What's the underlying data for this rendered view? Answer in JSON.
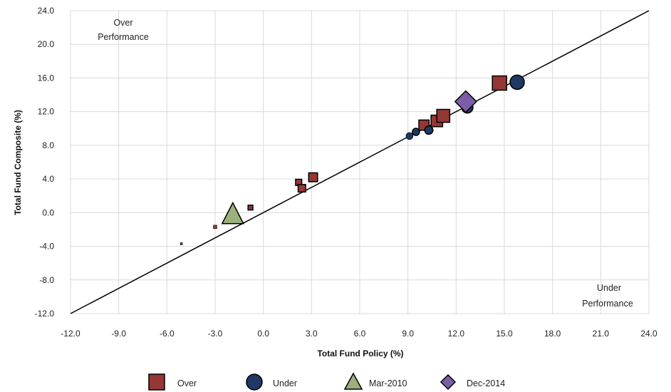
{
  "chart_data": {
    "type": "scatter",
    "xlabel": "Total Fund Policy (%)",
    "ylabel": "Total Fund Composite (%)",
    "xlim": [
      -12,
      24
    ],
    "ylim": [
      -12,
      24
    ],
    "x_ticks": [
      "-12.0",
      "-9.0",
      "-6.0",
      "-3.0",
      "0.0",
      "3.0",
      "6.0",
      "9.0",
      "12.0",
      "15.0",
      "18.0",
      "21.0",
      "24.0"
    ],
    "y_ticks": [
      "-12.0",
      "-8.0",
      "-4.0",
      "0.0",
      "4.0",
      "8.0",
      "12.0",
      "16.0",
      "20.0",
      "24.0"
    ],
    "grid": true,
    "reference_line": {
      "from": [
        -12,
        -12
      ],
      "to": [
        24,
        24
      ]
    },
    "annotations": {
      "over": [
        "Over",
        "Performance"
      ],
      "under": [
        "Under",
        "Performance"
      ]
    },
    "legend_position": "bottom",
    "series": [
      {
        "name": "Over",
        "marker": "square",
        "color": "#953735",
        "points": [
          {
            "x": -5.1,
            "y": -3.7
          },
          {
            "x": -3.0,
            "y": -1.7
          },
          {
            "x": -0.8,
            "y": 0.6
          },
          {
            "x": 2.2,
            "y": 3.6
          },
          {
            "x": 2.4,
            "y": 2.9
          },
          {
            "x": 3.1,
            "y": 4.2
          },
          {
            "x": 10.0,
            "y": 10.4
          },
          {
            "x": 10.8,
            "y": 10.9
          },
          {
            "x": 11.2,
            "y": 11.5
          },
          {
            "x": 14.7,
            "y": 15.4
          }
        ]
      },
      {
        "name": "Under",
        "marker": "circle",
        "color": "#1F3864",
        "points": [
          {
            "x": 9.1,
            "y": 9.1
          },
          {
            "x": 9.5,
            "y": 9.6
          },
          {
            "x": 10.3,
            "y": 9.8
          },
          {
            "x": 12.7,
            "y": 12.5
          },
          {
            "x": 15.8,
            "y": 15.5
          }
        ]
      },
      {
        "name": "Mar-2010",
        "marker": "triangle",
        "color": "#9BB07D",
        "points": [
          {
            "x": -1.9,
            "y": -0.1
          }
        ]
      },
      {
        "name": "Dec-2014",
        "marker": "diamond",
        "color": "#7B5EA7",
        "points": [
          {
            "x": 12.6,
            "y": 13.2
          }
        ]
      }
    ]
  }
}
